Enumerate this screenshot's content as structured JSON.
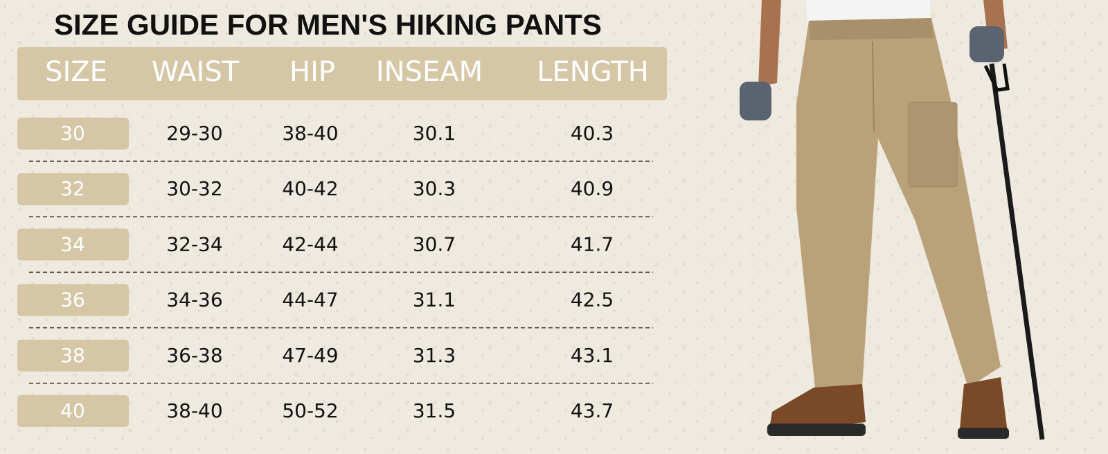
{
  "header": {
    "title": "SIZE GUIDE FOR MEN'S HIKING PANTS"
  },
  "table": {
    "columns": [
      "SIZE",
      "WAIST",
      "HIP",
      "INSEAM",
      "LENGTH"
    ],
    "rows": [
      [
        "30",
        "29-30",
        "38-40",
        "30.1",
        "40.3"
      ],
      [
        "32",
        "30-32",
        "40-42",
        "30.3",
        "40.9"
      ],
      [
        "34",
        "32-34",
        "42-44",
        "30.7",
        "41.7"
      ],
      [
        "36",
        "34-36",
        "44-47",
        "31.1",
        "42.5"
      ],
      [
        "38",
        "36-38",
        "47-49",
        "31.3",
        "43.1"
      ],
      [
        "40",
        "38-40",
        "50-52",
        "31.5",
        "43.7"
      ]
    ]
  }
}
